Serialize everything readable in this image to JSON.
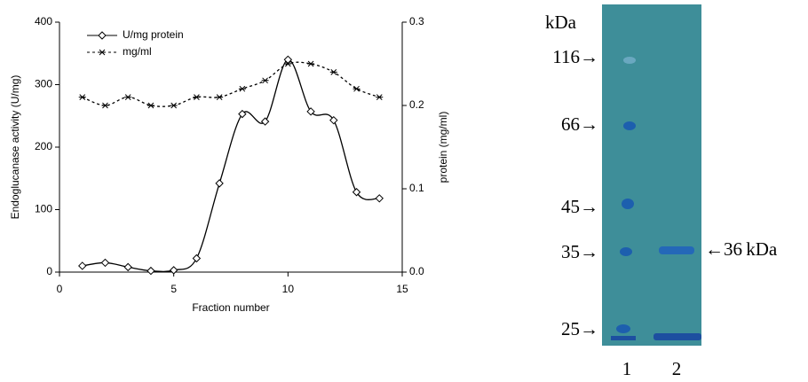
{
  "chart_data": {
    "type": "line",
    "xlabel": "Fraction number",
    "ylabel": "Endoglucanase activity (U/mg)",
    "y2label": "protein (mg/ml)",
    "x": [
      1,
      2,
      3,
      4,
      5,
      6,
      7,
      8,
      9,
      10,
      11,
      12,
      13,
      14
    ],
    "series": [
      {
        "name": "U/mg protein",
        "color": "#000000",
        "marker": "diamond",
        "dash": "solid",
        "values": [
          10,
          15,
          8,
          2,
          3,
          22,
          142,
          253,
          241,
          340,
          257,
          243,
          128,
          118
        ]
      },
      {
        "name": "mg/ml",
        "color": "#000000",
        "marker": "asterisk",
        "dash": "dotted",
        "axis": "y2",
        "values": [
          0.21,
          0.2,
          0.21,
          0.2,
          0.2,
          0.21,
          0.21,
          0.22,
          0.23,
          0.25,
          0.25,
          0.24,
          0.22,
          0.21
        ]
      }
    ],
    "xlim": [
      0,
      15
    ],
    "xticks": [
      0,
      5,
      10,
      15
    ],
    "ylim": [
      0,
      400
    ],
    "yticks": [
      0,
      100,
      200,
      300,
      400
    ],
    "y2lim": [
      0,
      0.3
    ],
    "y2ticks": [
      {
        "value": 0,
        "label": "0.0"
      },
      0.1,
      0.2,
      0.3
    ],
    "legend": "upper-left",
    "grid": false
  },
  "gel": {
    "unit": "kDa",
    "markers": [
      "116→",
      "66→",
      "45→",
      "35→",
      "25→"
    ],
    "band_label": "←36 kDa",
    "lanes": [
      "1",
      "2"
    ]
  }
}
